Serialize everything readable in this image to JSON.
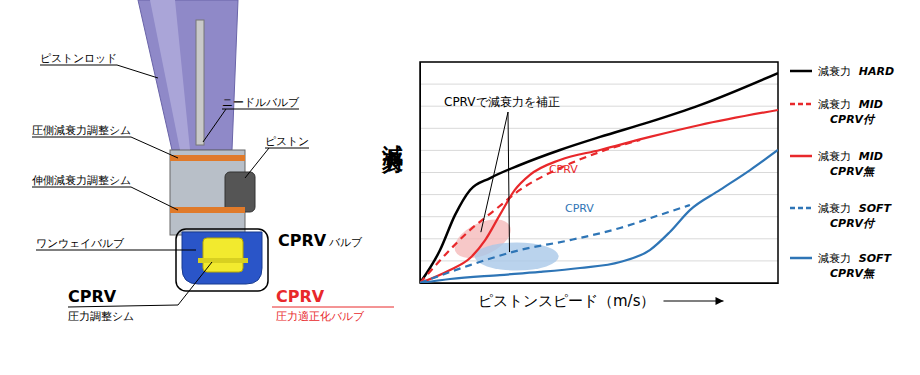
{
  "chart_data": {
    "type": "line",
    "ylabel": "減衰力",
    "xlabel": "ピストンスピード（m/s）",
    "xlim": [
      0,
      10
    ],
    "ylim": [
      0,
      10
    ],
    "yticks": [
      0,
      1,
      2,
      3,
      4,
      5,
      6,
      7,
      8,
      9,
      10
    ],
    "grid": true,
    "tick_labels": false,
    "legend": "right",
    "annotations": [
      {
        "text": "CPRVで減衰力を補正"
      },
      {
        "text": "CPRV"
      },
      {
        "text": "CPRV"
      }
    ],
    "series": [
      {
        "name": "減衰力 HARD",
        "color": "#000000",
        "line_style": "solid",
        "x": [
          0,
          0.56,
          0.98,
          1.4,
          1.96,
          2.79,
          3.91,
          5.03,
          6.42,
          7.82,
          10
        ],
        "values": [
          0,
          1.49,
          3.08,
          4.21,
          4.75,
          5.34,
          6.02,
          6.61,
          7.29,
          8.05,
          9.5
        ]
      },
      {
        "name": "減衰力 MID CPRV付",
        "color": "#e8282b",
        "line_style": "dashed",
        "x": [
          0,
          0.7,
          1.4,
          2.09,
          2.79,
          3.91,
          5.03,
          6.15
        ],
        "values": [
          0,
          1.27,
          2.4,
          3.3,
          4.21,
          5.2,
          5.93,
          6.47
        ]
      },
      {
        "name": "減衰力 MID CPRV無",
        "color": "#e8282b",
        "line_style": "solid",
        "x": [
          0,
          0.84,
          1.4,
          1.82,
          2.23,
          2.65,
          3.07,
          3.91,
          5.03,
          6.42,
          7.82,
          10
        ],
        "values": [
          0,
          0.59,
          1.13,
          1.94,
          3.08,
          4.21,
          4.89,
          5.57,
          6.02,
          6.61,
          7.15,
          7.83
        ]
      },
      {
        "name": "減衰力 SOFT CPRV付",
        "color": "#2e75b6",
        "line_style": "dashed",
        "x": [
          0,
          1.4,
          2.79,
          4.19,
          5.59,
          6.7,
          7.54
        ],
        "values": [
          0,
          0.81,
          1.49,
          1.94,
          2.49,
          3.08,
          3.53
        ]
      },
      {
        "name": "減衰力 SOFT CPRV無",
        "color": "#2e75b6",
        "line_style": "solid",
        "x": [
          0,
          0.84,
          2.23,
          3.35,
          4.47,
          5.59,
          6.42,
          6.98,
          7.54,
          8.38,
          9.22,
          10
        ],
        "values": [
          0,
          0.18,
          0.36,
          0.5,
          0.68,
          0.95,
          1.49,
          2.31,
          3.3,
          4.21,
          5.11,
          6.02
        ]
      }
    ]
  },
  "diagram": {
    "labels": [
      "ピストンロッド",
      "ニードルバルブ",
      "圧側減衰力調整シム",
      "ピストン",
      "伸側減衰力調整シム",
      "ワンウェイバルブ"
    ],
    "cprv_valve": {
      "title": "CPRV",
      "subtitle": "バルブ"
    },
    "cprv_shim": {
      "title": "CPRV",
      "subtitle": "圧力調整シム"
    },
    "cprv_name": {
      "title": "CPRV",
      "subtitle": "圧力適正化バルブ"
    }
  }
}
